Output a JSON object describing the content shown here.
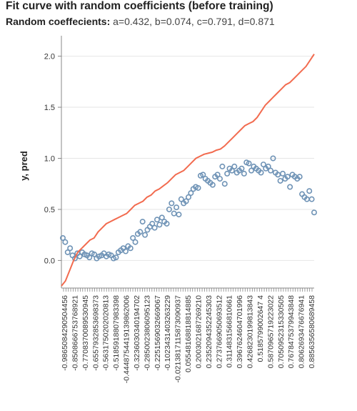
{
  "chart_data": {
    "type": "line",
    "title": "Fit curve with random coefficients (before training)",
    "subtitle_label": "Random coeffecients:",
    "subtitle_values": "a=0.432, b=0.074, c=0.791, d=0.871",
    "xlabel": "",
    "ylabel": "y, pred",
    "ylim": [
      -0.27,
      2.2
    ],
    "y_ticks": [
      "0.0",
      "0.5",
      "1.0",
      "1.5",
      "2.0"
    ],
    "x_tick_labels": [
      "-0.9865084290504456",
      "-0.8508666753768921",
      "-0.7708370089530945",
      "-0.6557932853698373",
      "-0.5631750202020813",
      "-0.5185918807983398",
      "-0.4448754419139862006",
      "-0.3236030340194702",
      "-0.2850023806095123",
      "-0.2251569032669067",
      "-0.1023431403263229",
      "-0.0213817115873090937",
      "0.05548168818814885",
      "0.2003021687269210",
      "0.2352094352245303",
      "0.2737669050693512",
      "0.3114831566810661",
      "0.3967624604701996",
      "0.4268230199813843",
      "0.5185799002647 4",
      "0.5870965719223022",
      "0.7050952315330505",
      "0.7678475379943848",
      "0.8062693476676941",
      "0.8856356580689458"
    ],
    "colors": {
      "pred_line": "#f26b4f",
      "y_points": "#6f93b6",
      "axis": "#888888",
      "grid": "#e6e6e6"
    },
    "series": [
      {
        "type": "scatter",
        "values": [
          0.22,
          0.18,
          0.08,
          0.12,
          0.05,
          0.02,
          0.07,
          0.04,
          0.08,
          0.06,
          0.05,
          0.03,
          0.07,
          0.06,
          0.02,
          0.04,
          0.05,
          0.07,
          0.04,
          0.06,
          0.05,
          0.02,
          0.03,
          0.08,
          0.1,
          0.12,
          0.09,
          0.14,
          0.12,
          0.22,
          0.18,
          0.26,
          0.28,
          0.38,
          0.25,
          0.3,
          0.33,
          0.36,
          0.32,
          0.4,
          0.35,
          0.42,
          0.38,
          0.36,
          0.5,
          0.56,
          0.46,
          0.52,
          0.45,
          0.6,
          0.56,
          0.58,
          0.62,
          0.66,
          0.7,
          0.72,
          0.71,
          0.83,
          0.84,
          0.8,
          0.78,
          0.76,
          0.74,
          0.82,
          0.84,
          0.8,
          0.92,
          0.75,
          0.85,
          0.9,
          0.88,
          0.92,
          0.86,
          0.88,
          0.9,
          0.85,
          0.96,
          0.95,
          0.88,
          0.92,
          0.9,
          0.88,
          0.86,
          0.94,
          0.9,
          0.92,
          0.88,
          1.0,
          0.86,
          0.84,
          0.78,
          0.85,
          0.8,
          0.82,
          0.72,
          0.84,
          0.82,
          0.8,
          0.82,
          0.65,
          0.62,
          0.6,
          0.68,
          0.6,
          0.47
        ]
      },
      {
        "type": "line",
        "values": [
          -0.25,
          -0.2,
          -0.1,
          0.0,
          0.08,
          0.12,
          0.16,
          0.2,
          0.22,
          0.28,
          0.32,
          0.36,
          0.38,
          0.4,
          0.42,
          0.44,
          0.46,
          0.5,
          0.54,
          0.56,
          0.58,
          0.62,
          0.64,
          0.68,
          0.7,
          0.73,
          0.76,
          0.8,
          0.84,
          0.86,
          0.88,
          0.92,
          0.96,
          1.0,
          1.02,
          1.04,
          1.05,
          1.06,
          1.08,
          1.09,
          1.12,
          1.16,
          1.2,
          1.24,
          1.28,
          1.32,
          1.34,
          1.36,
          1.4,
          1.46,
          1.52,
          1.56,
          1.6,
          1.64,
          1.68,
          1.72,
          1.74,
          1.78,
          1.82,
          1.86,
          1.9,
          1.96,
          2.02
        ]
      }
    ]
  }
}
